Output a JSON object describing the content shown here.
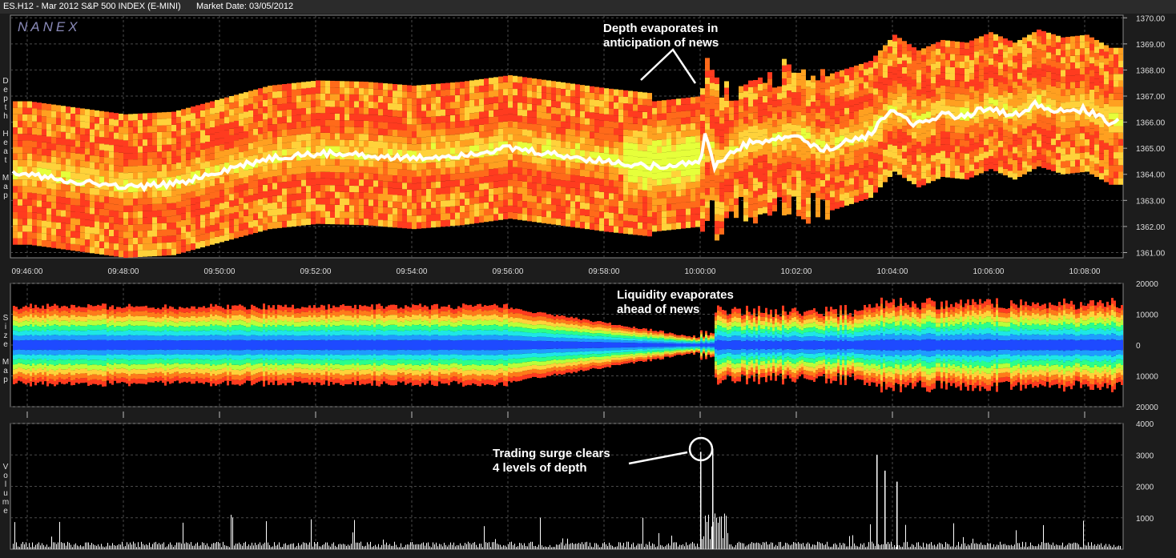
{
  "header": {
    "symbol": "ES.H12 - Mar 2012 S&P 500 INDEX (E-MINI)",
    "market_date": "Market Date: 03/05/2012"
  },
  "brand": "NANEX",
  "panels": {
    "depth": {
      "label_letters": [
        "D",
        "e",
        "p",
        "t",
        "h",
        "",
        "H",
        "e",
        "a",
        "t",
        "",
        "M",
        "a",
        "p"
      ]
    },
    "size": {
      "label_letters": [
        "S",
        "i",
        "z",
        "e",
        "",
        "M",
        "a",
        "p"
      ]
    },
    "volume": {
      "label_letters": [
        "V",
        "o",
        "l",
        "u",
        "m",
        "e"
      ]
    }
  },
  "annotations": {
    "depth_line1": "Depth evaporates in",
    "depth_line2": "anticipation of news",
    "liquidity_line1": "Liquidity evaporates",
    "liquidity_line2": "ahead of news",
    "surge_line1": "Trading surge clears",
    "surge_line2": "4 levels of depth"
  },
  "colors": {
    "background": "#000000",
    "frame": "#1c1c1c",
    "grid": "#555555",
    "price_line": "#ffffff",
    "heat_scale": [
      "#ff3b1f",
      "#ff6a1a",
      "#ffa020",
      "#ffd23a",
      "#e6ff3a",
      "#8cff3a",
      "#2aff8a",
      "#1ee6e6",
      "#1e9cff",
      "#1e5aff"
    ]
  },
  "chart_data": [
    {
      "type": "heatmap",
      "title": "Depth Heat Map",
      "x_ticks": [
        "09:46:00",
        "09:48:00",
        "09:50:00",
        "09:52:00",
        "09:54:00",
        "09:56:00",
        "09:58:00",
        "10:00:00",
        "10:02:00",
        "10:04:00",
        "10:06:00",
        "10:08:00"
      ],
      "y_ticks": [
        "1370.00",
        "1369.00",
        "1368.00",
        "1367.00",
        "1366.00",
        "1365.00",
        "1364.00",
        "1363.00",
        "1362.00",
        "1361.00"
      ],
      "ylim": [
        1360.8,
        1370.1
      ],
      "price_series": {
        "x_minutes": [
          0,
          1,
          2,
          3,
          4,
          5,
          6,
          7,
          8,
          9,
          10,
          11,
          12,
          13,
          14,
          14.1,
          14.3,
          14.6,
          15,
          15.5,
          16,
          16.5,
          17,
          17.5,
          18,
          18.5,
          19,
          19.5,
          20,
          20.5,
          21,
          21.5,
          22,
          22.5
        ],
        "y": [
          1364.0,
          1363.75,
          1363.5,
          1363.6,
          1364.1,
          1364.6,
          1364.8,
          1364.75,
          1364.6,
          1364.75,
          1365.0,
          1364.75,
          1364.5,
          1364.3,
          1364.5,
          1365.5,
          1364.3,
          1364.75,
          1365.2,
          1365.3,
          1365.5,
          1364.9,
          1365.2,
          1365.5,
          1366.5,
          1365.9,
          1366.3,
          1366.2,
          1366.6,
          1366.2,
          1366.7,
          1366.4,
          1366.5,
          1366.0
        ]
      }
    },
    {
      "type": "area",
      "title": "Size Map",
      "y_ticks": [
        "20000",
        "10000",
        "0",
        "10000",
        "20000"
      ],
      "ylim": [
        -20000,
        20000
      ]
    },
    {
      "type": "bar",
      "title": "Volume",
      "y_ticks": [
        "4000",
        "3000",
        "2000",
        "1000"
      ],
      "ylim": [
        0,
        4000
      ],
      "notable_spikes": [
        {
          "time": "10:00:00",
          "value": 3100
        },
        {
          "time": "10:00:15",
          "value": 3200
        },
        {
          "time": "10:03:40",
          "value": 3000
        },
        {
          "time": "10:03:50",
          "value": 2500
        },
        {
          "time": "10:04:05",
          "value": 2150
        }
      ]
    }
  ]
}
